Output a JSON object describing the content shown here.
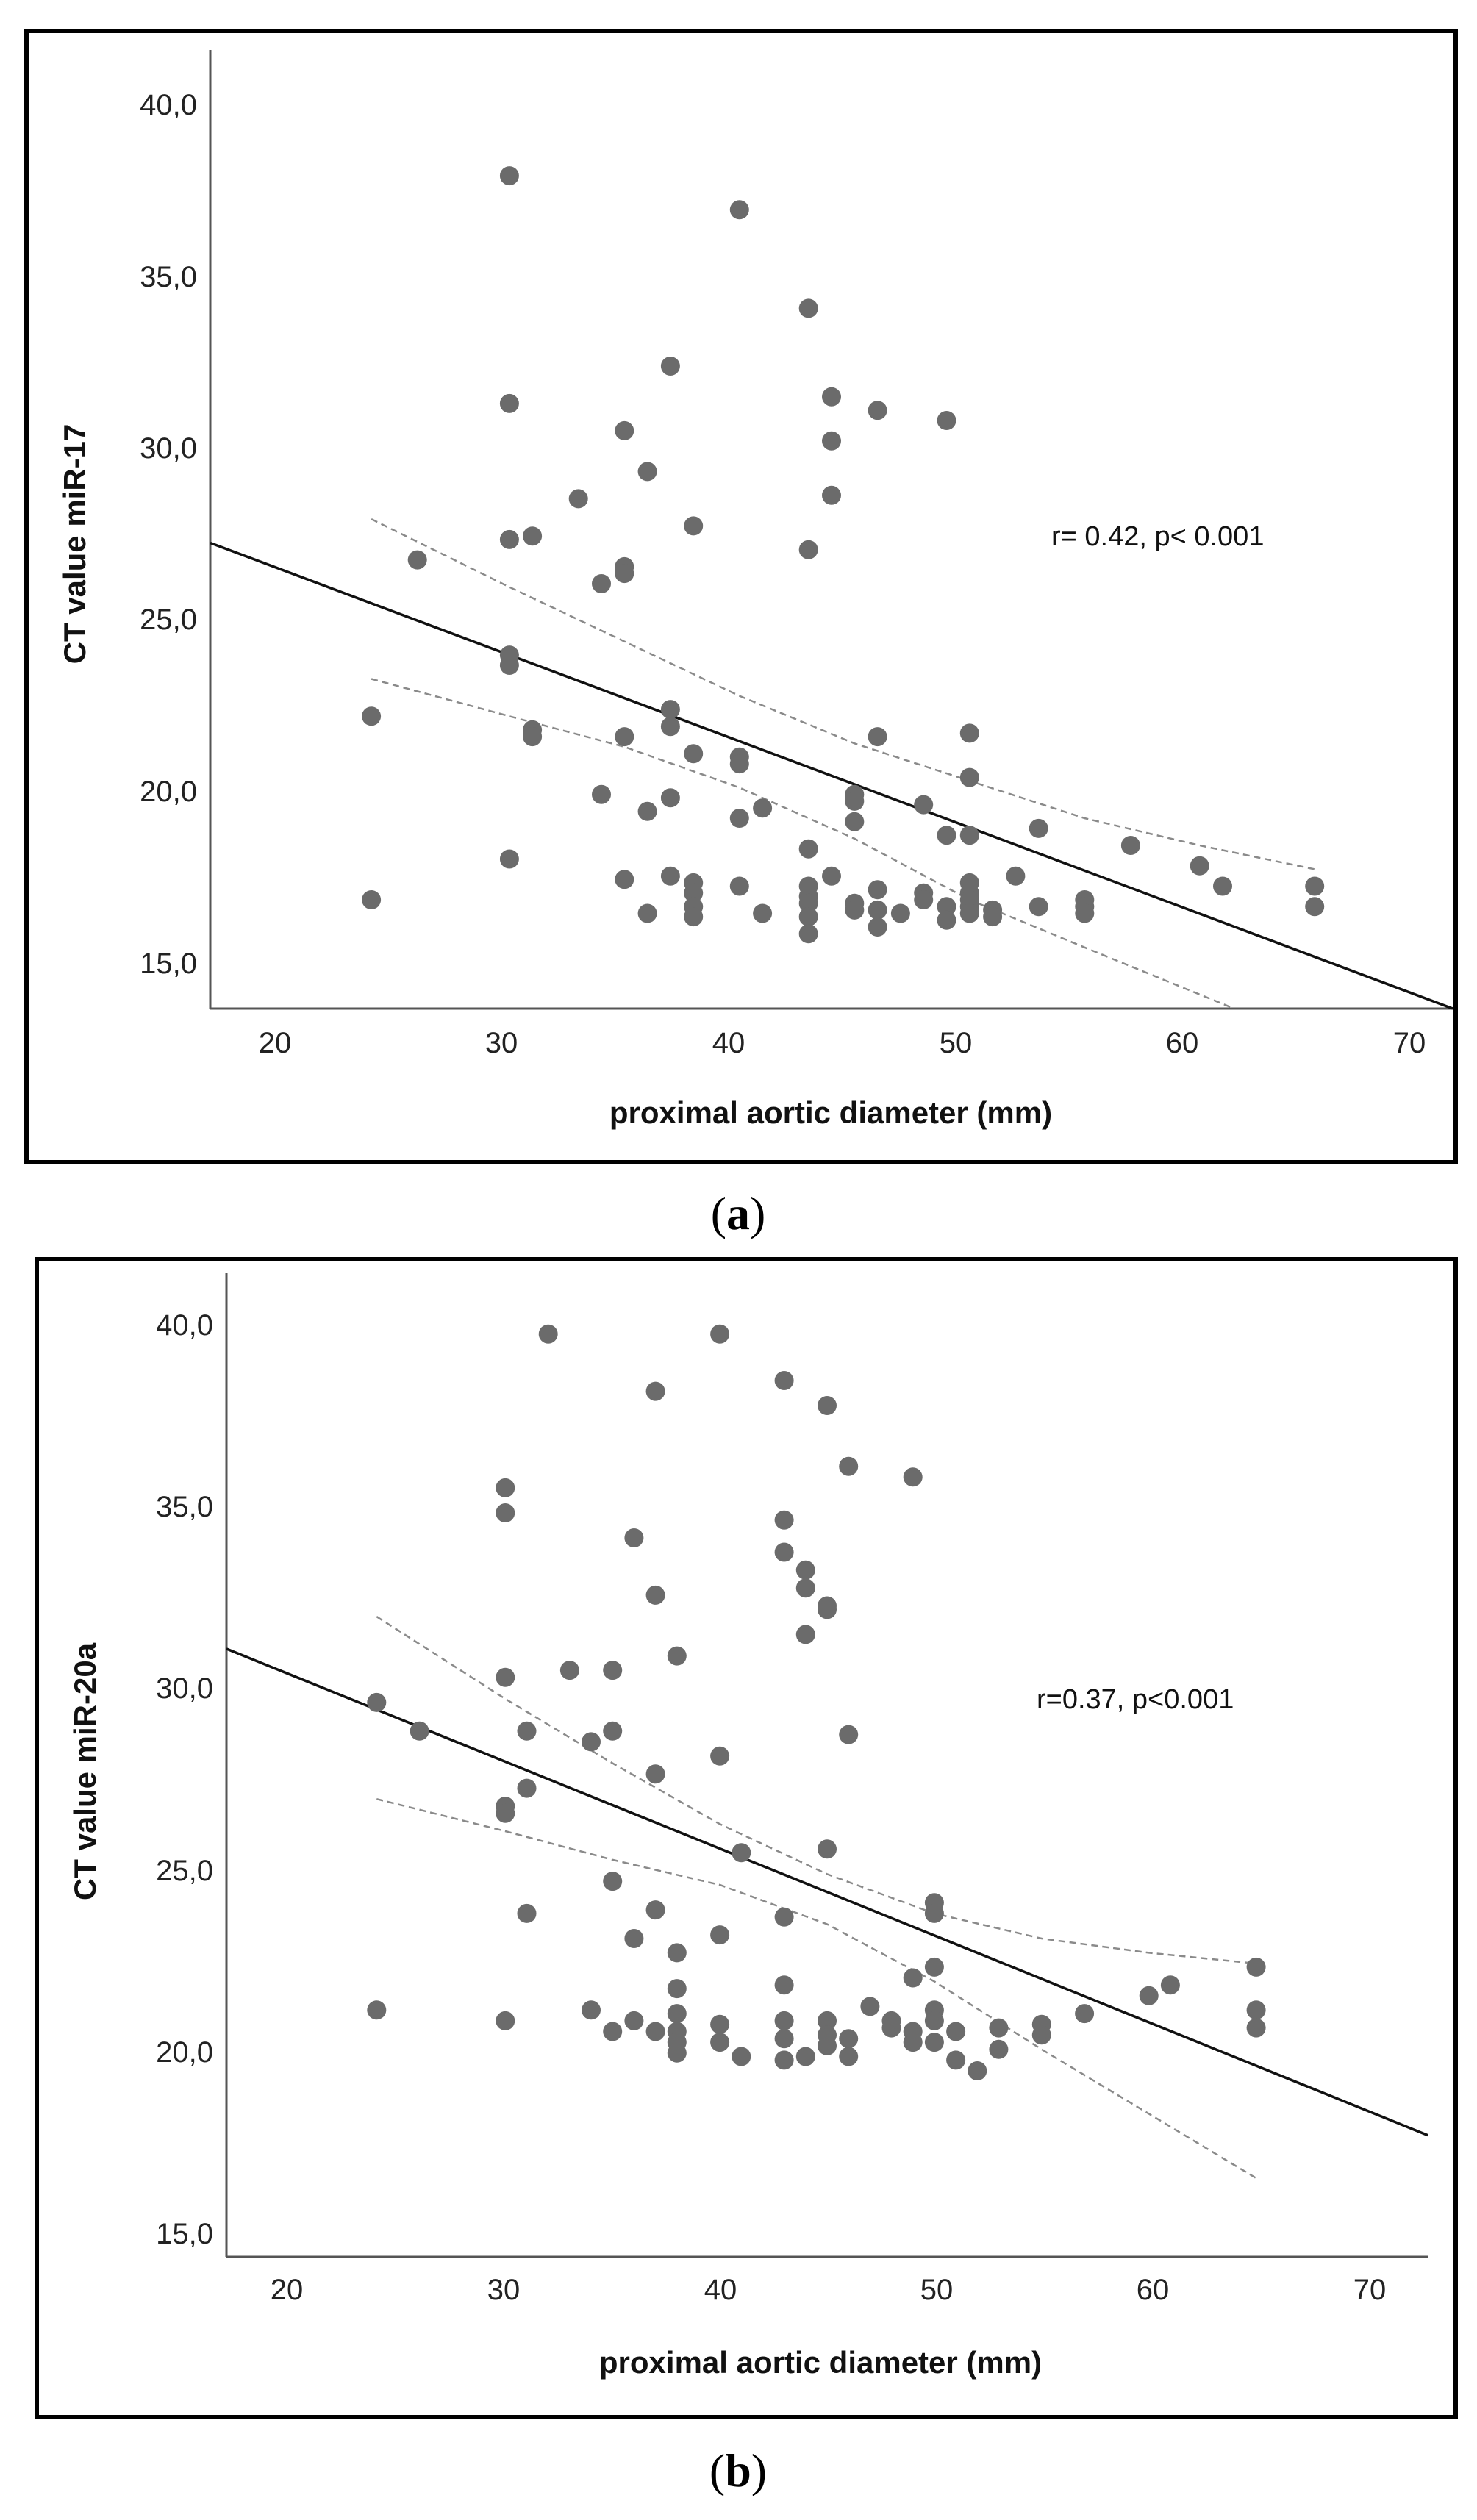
{
  "chart_data": [
    {
      "type": "scatter",
      "panel_label": "a",
      "xlabel": "proximal aortic diameter (mm)",
      "ylabel": "CT value miR-17",
      "annotation": "r= 0.42, p< 0.001",
      "xlim": [
        17,
        71
      ],
      "ylim": [
        13.8,
        42.0
      ],
      "xticks": [
        "20",
        "30",
        "40",
        "50",
        "60",
        "70"
      ],
      "yticks": [
        "15,0",
        "20,0",
        "25,0",
        "30,0",
        "35,0",
        "40,0"
      ],
      "colors": {
        "points": "#6b6b6b",
        "fit": "#111111",
        "ci": "#8a8a8a"
      },
      "regression": {
        "x": [
          17,
          71
        ],
        "y": [
          27.5,
          13.8
        ]
      },
      "ci_upper": {
        "x": [
          24,
          30,
          35,
          40,
          45,
          50,
          55,
          60,
          65
        ],
        "y": [
          28.2,
          26.2,
          24.6,
          23.0,
          21.6,
          20.5,
          19.4,
          18.6,
          17.9
        ]
      },
      "ci_lower": {
        "x": [
          24,
          30,
          35,
          40,
          45,
          50,
          55,
          61.5
        ],
        "y": [
          23.5,
          22.4,
          21.5,
          20.3,
          18.8,
          17.0,
          15.6,
          13.8
        ]
      },
      "points": [
        [
          24,
          22.4
        ],
        [
          24,
          17.0
        ],
        [
          26,
          27.0
        ],
        [
          30,
          38.3
        ],
        [
          30,
          31.6
        ],
        [
          30,
          27.6
        ],
        [
          30,
          24.2
        ],
        [
          30,
          23.9
        ],
        [
          30,
          18.2
        ],
        [
          31,
          27.7
        ],
        [
          31,
          22.0
        ],
        [
          31,
          21.8
        ],
        [
          33,
          28.8
        ],
        [
          34,
          26.3
        ],
        [
          34,
          20.1
        ],
        [
          35,
          30.8
        ],
        [
          35,
          26.8
        ],
        [
          35,
          26.6
        ],
        [
          35,
          21.8
        ],
        [
          35,
          17.6
        ],
        [
          36,
          29.6
        ],
        [
          36,
          19.6
        ],
        [
          36,
          16.6
        ],
        [
          37,
          32.7
        ],
        [
          37,
          22.6
        ],
        [
          37,
          22.1
        ],
        [
          37,
          20.0
        ],
        [
          37,
          17.7
        ],
        [
          38,
          28.0
        ],
        [
          38,
          21.3
        ],
        [
          38,
          17.5
        ],
        [
          38,
          17.2
        ],
        [
          38,
          16.8
        ],
        [
          38,
          16.5
        ],
        [
          40,
          37.3
        ],
        [
          40,
          21.2
        ],
        [
          40,
          21.0
        ],
        [
          40,
          19.4
        ],
        [
          40,
          17.4
        ],
        [
          41,
          19.7
        ],
        [
          41,
          16.6
        ],
        [
          43,
          34.4
        ],
        [
          43,
          27.3
        ],
        [
          43,
          18.5
        ],
        [
          43,
          17.4
        ],
        [
          43,
          17.1
        ],
        [
          43,
          16.9
        ],
        [
          43,
          16.5
        ],
        [
          43,
          16.0
        ],
        [
          44,
          31.8
        ],
        [
          44,
          30.5
        ],
        [
          44,
          28.9
        ],
        [
          44,
          17.7
        ],
        [
          45,
          20.1
        ],
        [
          45,
          19.9
        ],
        [
          45,
          19.3
        ],
        [
          45,
          16.9
        ],
        [
          45,
          16.7
        ],
        [
          46,
          31.4
        ],
        [
          46,
          21.8
        ],
        [
          46,
          17.3
        ],
        [
          46,
          16.7
        ],
        [
          46,
          16.2
        ],
        [
          47,
          16.6
        ],
        [
          48,
          19.8
        ],
        [
          48,
          17.2
        ],
        [
          48,
          17.0
        ],
        [
          49,
          31.1
        ],
        [
          49,
          18.9
        ],
        [
          49,
          16.8
        ],
        [
          49,
          16.4
        ],
        [
          50,
          21.9
        ],
        [
          50,
          20.6
        ],
        [
          50,
          18.9
        ],
        [
          50,
          17.5
        ],
        [
          50,
          17.2
        ],
        [
          50,
          17.0
        ],
        [
          50,
          16.8
        ],
        [
          50,
          16.6
        ],
        [
          51,
          16.7
        ],
        [
          51,
          16.5
        ],
        [
          52,
          17.7
        ],
        [
          53,
          19.1
        ],
        [
          53,
          16.8
        ],
        [
          55,
          17.0
        ],
        [
          55,
          16.8
        ],
        [
          55,
          16.6
        ],
        [
          57,
          18.6
        ],
        [
          60,
          18.0
        ],
        [
          61,
          17.4
        ],
        [
          65,
          17.4
        ],
        [
          65,
          16.8
        ]
      ]
    },
    {
      "type": "scatter",
      "panel_label": "b",
      "xlabel": "proximal aortic diameter (mm)",
      "ylabel": "CT value miR-20a",
      "annotation": "r=0.37, p<0.001",
      "xlim": [
        17,
        73
      ],
      "ylim": [
        14.0,
        41.5
      ],
      "xticks": [
        "20",
        "30",
        "40",
        "50",
        "60",
        "70"
      ],
      "yticks": [
        "15,0",
        "20,0",
        "25,0",
        "30,0",
        "35,0",
        "40,0"
      ],
      "colors": {
        "points": "#6b6b6b",
        "fit": "#111111",
        "ci": "#8a8a8a"
      },
      "regression": {
        "x": [
          17,
          73
        ],
        "y": [
          31.0,
          17.4
        ]
      },
      "ci_upper": {
        "x": [
          24,
          30,
          35,
          40,
          45,
          50,
          55,
          60,
          65
        ],
        "y": [
          31.9,
          29.6,
          27.8,
          26.1,
          24.7,
          23.6,
          22.9,
          22.5,
          22.2
        ]
      },
      "ci_lower": {
        "x": [
          24,
          30,
          35,
          40,
          45,
          50,
          55,
          60,
          65
        ],
        "y": [
          26.8,
          25.9,
          25.1,
          24.4,
          23.3,
          21.7,
          19.8,
          18.0,
          16.2
        ]
      },
      "points": [
        [
          24,
          29.5
        ],
        [
          24,
          20.9
        ],
        [
          26,
          28.7
        ],
        [
          30,
          35.5
        ],
        [
          30,
          34.8
        ],
        [
          30,
          30.2
        ],
        [
          30,
          26.6
        ],
        [
          30,
          26.4
        ],
        [
          30,
          20.6
        ],
        [
          31,
          28.7
        ],
        [
          31,
          27.1
        ],
        [
          31,
          23.6
        ],
        [
          32,
          39.8
        ],
        [
          33,
          30.4
        ],
        [
          34,
          28.4
        ],
        [
          34,
          20.9
        ],
        [
          35,
          30.4
        ],
        [
          35,
          28.7
        ],
        [
          35,
          24.5
        ],
        [
          35,
          20.3
        ],
        [
          36,
          34.1
        ],
        [
          36,
          22.9
        ],
        [
          36,
          20.6
        ],
        [
          37,
          38.2
        ],
        [
          37,
          32.5
        ],
        [
          37,
          27.5
        ],
        [
          37,
          23.7
        ],
        [
          37,
          20.3
        ],
        [
          38,
          30.8
        ],
        [
          38,
          22.5
        ],
        [
          38,
          21.5
        ],
        [
          38,
          20.8
        ],
        [
          38,
          20.3
        ],
        [
          38,
          20.0
        ],
        [
          38,
          19.7
        ],
        [
          40,
          39.8
        ],
        [
          40,
          28.0
        ],
        [
          40,
          23.0
        ],
        [
          40,
          20.5
        ],
        [
          40,
          20.0
        ],
        [
          41,
          25.3
        ],
        [
          41,
          19.6
        ],
        [
          43,
          38.5
        ],
        [
          43,
          34.6
        ],
        [
          43,
          33.7
        ],
        [
          43,
          23.5
        ],
        [
          43,
          21.6
        ],
        [
          43,
          20.6
        ],
        [
          43,
          20.1
        ],
        [
          43,
          19.5
        ],
        [
          44,
          33.2
        ],
        [
          44,
          32.7
        ],
        [
          44,
          31.4
        ],
        [
          44,
          19.6
        ],
        [
          45,
          37.8
        ],
        [
          45,
          32.2
        ],
        [
          45,
          32.1
        ],
        [
          45,
          25.4
        ],
        [
          45,
          20.6
        ],
        [
          45,
          20.2
        ],
        [
          45,
          19.9
        ],
        [
          46,
          36.1
        ],
        [
          46,
          28.6
        ],
        [
          46,
          20.1
        ],
        [
          46,
          19.6
        ],
        [
          47,
          21.0
        ],
        [
          48,
          20.6
        ],
        [
          48,
          20.4
        ],
        [
          49,
          35.8
        ],
        [
          49,
          21.8
        ],
        [
          49,
          20.3
        ],
        [
          49,
          20.0
        ],
        [
          50,
          23.9
        ],
        [
          50,
          23.6
        ],
        [
          50,
          22.1
        ],
        [
          50,
          20.9
        ],
        [
          50,
          20.6
        ],
        [
          50,
          20.0
        ],
        [
          51,
          20.3
        ],
        [
          51,
          19.5
        ],
        [
          52,
          19.2
        ],
        [
          53,
          20.4
        ],
        [
          53,
          19.8
        ],
        [
          55,
          20.5
        ],
        [
          55,
          20.2
        ],
        [
          57,
          20.8
        ],
        [
          60,
          21.3
        ],
        [
          61,
          21.6
        ],
        [
          65,
          22.1
        ],
        [
          65,
          20.9
        ],
        [
          65,
          20.4
        ]
      ]
    }
  ]
}
